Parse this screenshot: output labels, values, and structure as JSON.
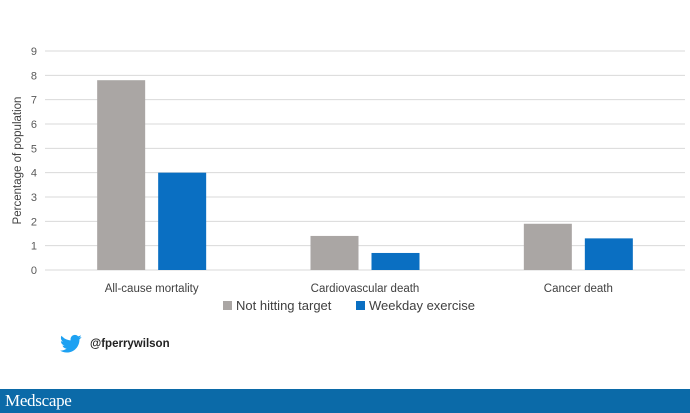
{
  "chart_data": {
    "type": "bar",
    "categories": [
      "All-cause mortality",
      "Cardiovascular death",
      "Cancer death"
    ],
    "series": [
      {
        "name": "Not hitting target",
        "values": [
          7.8,
          1.4,
          1.9
        ],
        "color": "#aaa6a4"
      },
      {
        "name": "Weekday exercise",
        "values": [
          4.0,
          0.7,
          1.3
        ],
        "color": "#0a6fc2"
      }
    ],
    "ylabel": "Percentage of population",
    "xlabel": "",
    "ylim": [
      0,
      9
    ],
    "yticks": [
      0,
      1,
      2,
      3,
      4,
      5,
      6,
      7,
      8,
      9
    ],
    "grid": true,
    "legend": "bottom"
  },
  "twitter": {
    "handle": "@fperrywilson",
    "icon": "twitter-bird-icon",
    "color": "#1da1f2"
  },
  "footer": {
    "brand": "Medscape",
    "color": "#0b6aa8"
  }
}
